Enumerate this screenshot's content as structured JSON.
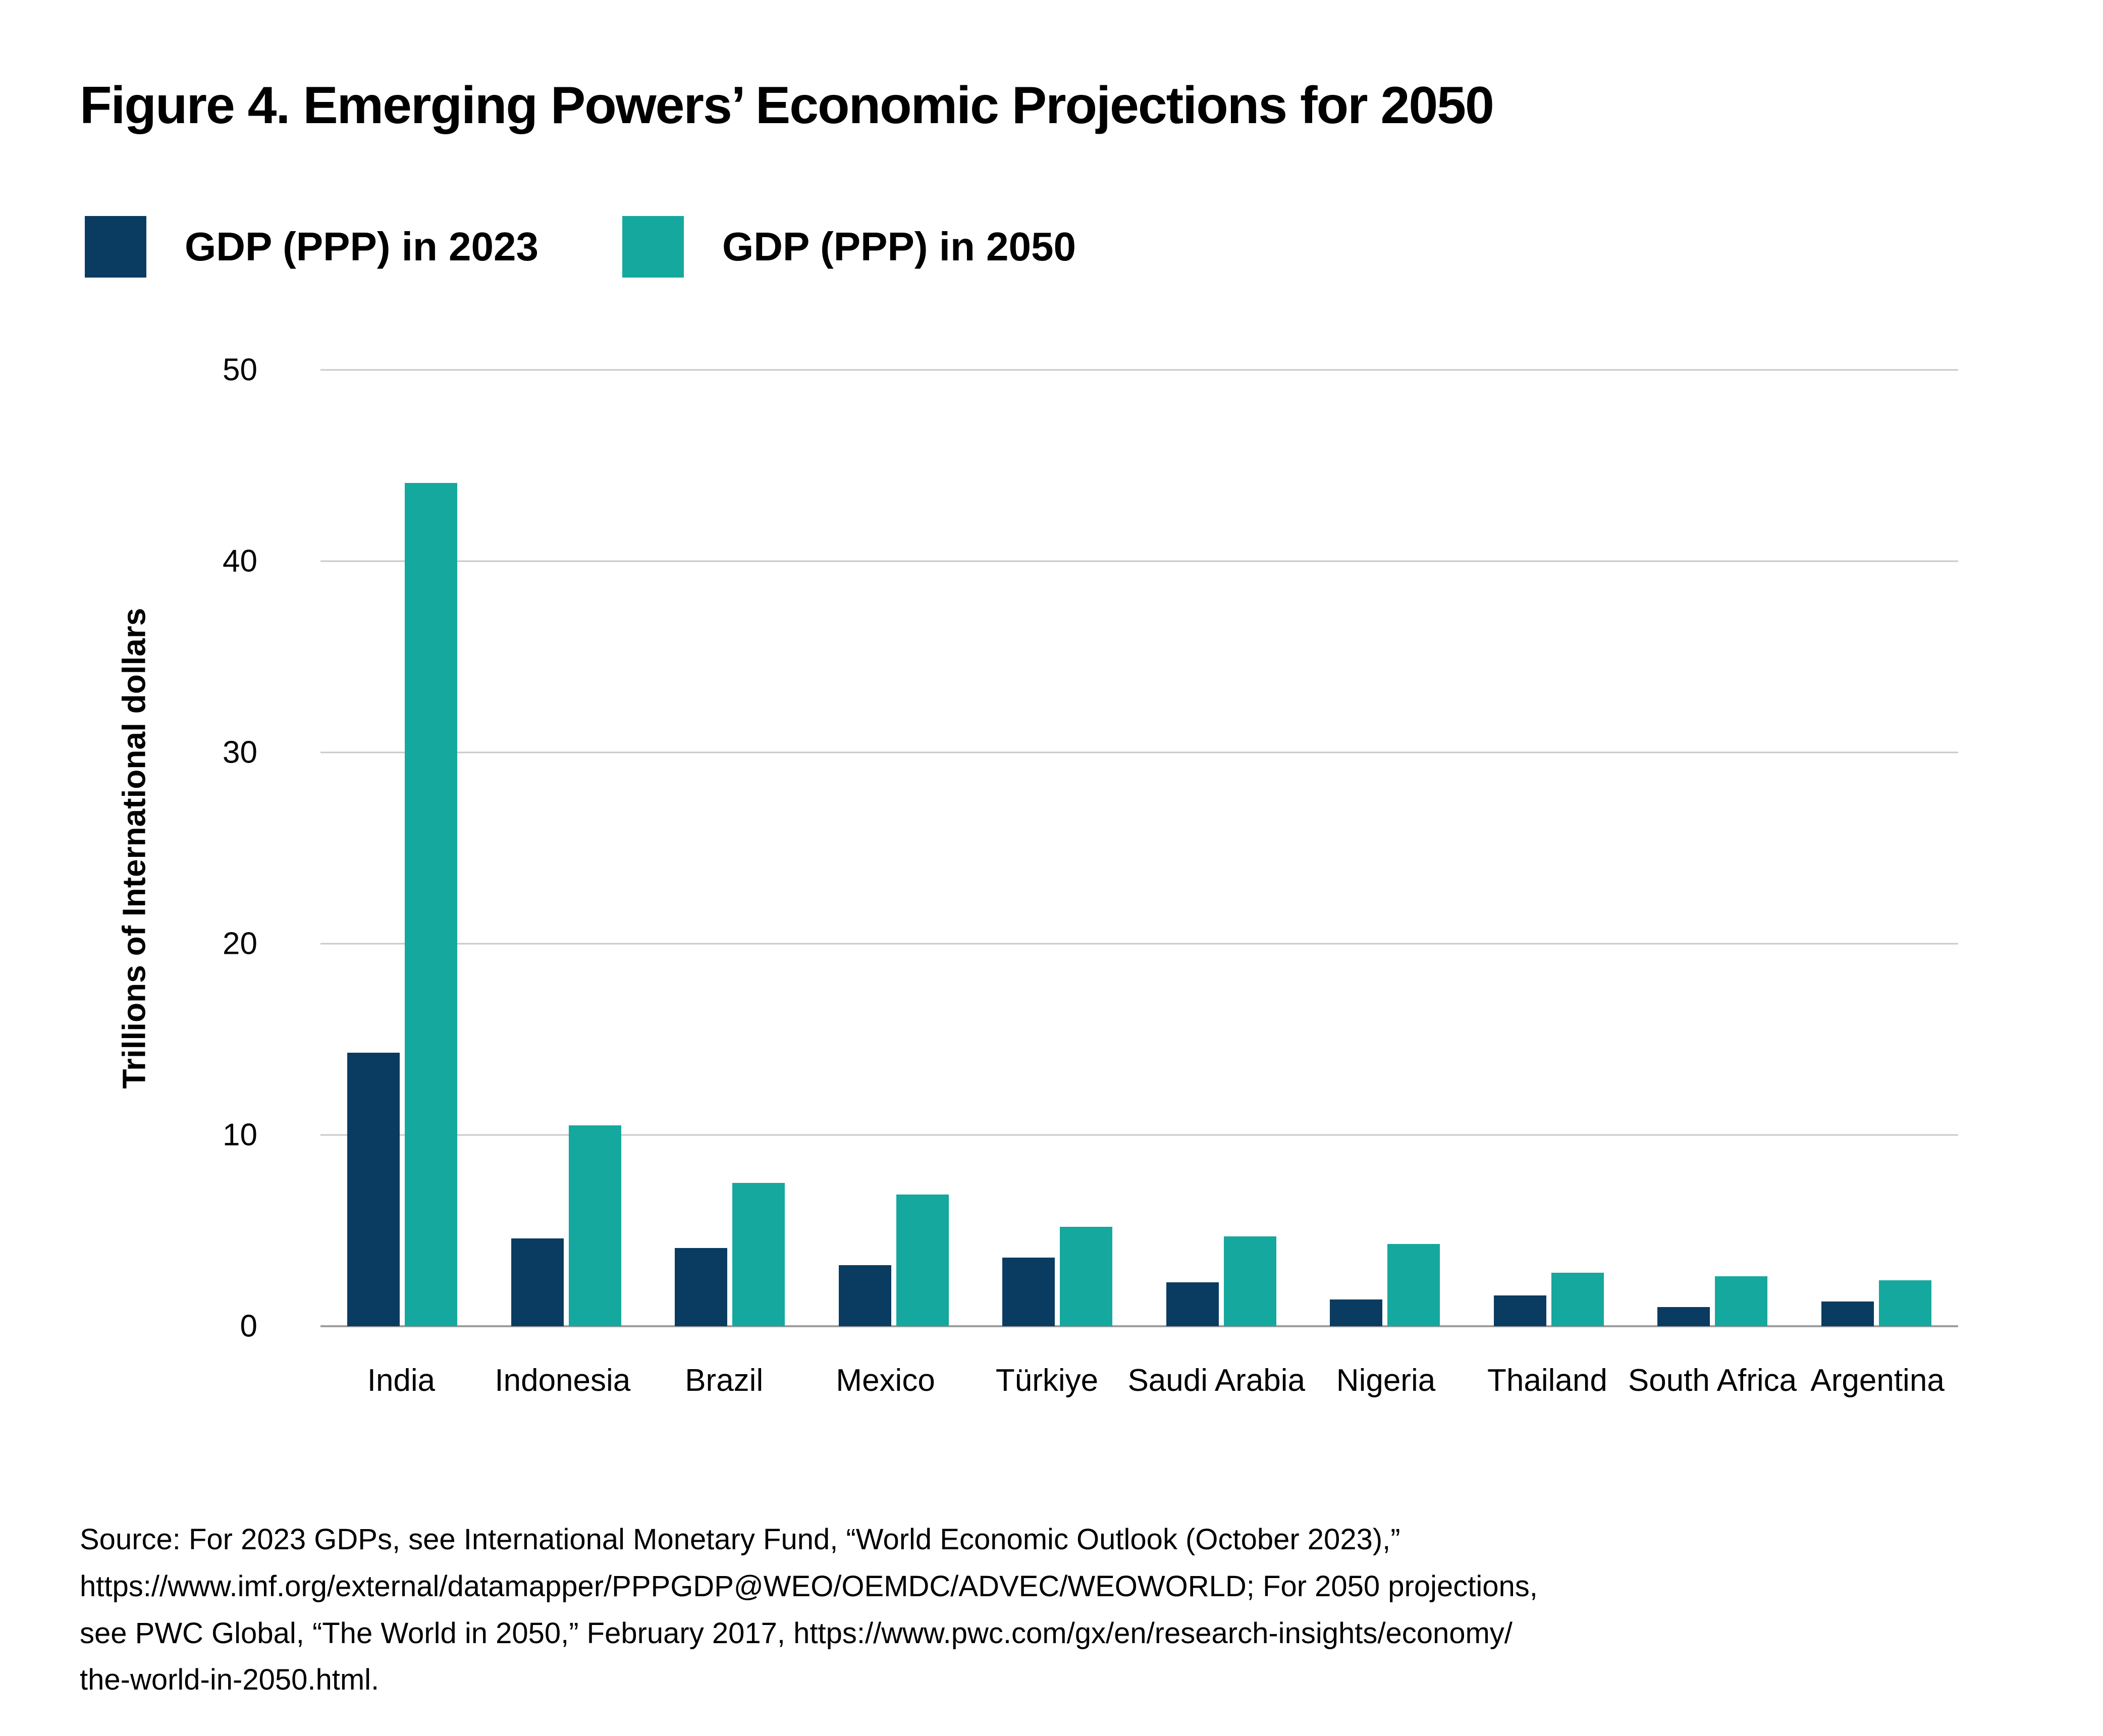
{
  "figure": {
    "title": "Figure 4. Emerging Powers’ Economic Projections for 2050",
    "source": "Source: For 2023 GDPs, see International Monetary Fund, “World Economic Outlook (October 2023),”\nhttps://www.imf.org/external/datamapper/PPPGDP@WEO/OEMDC/ADVEC/WEOWORLD; For 2050 projections,\nsee PWC Global, “The World in 2050,” February 2017, https://www.pwc.com/gx/en/research-insights/economy/\nthe-world-in-2050.html."
  },
  "colors": {
    "navy_2023": "#0a3c61",
    "teal_2050": "#14a89e",
    "gridline": "#c9c9c9",
    "baseline": "#9e9e9e",
    "text": "#000000"
  },
  "chart_data": {
    "type": "bar",
    "title": "Figure 4. Emerging Powers’ Economic Projections for 2050",
    "categories": [
      "India",
      "Indonesia",
      "Brazil",
      "Mexico",
      "Türkiye",
      "Saudi Arabia",
      "Nigeria",
      "Thailand",
      "South Africa",
      "Argentina"
    ],
    "series": [
      {
        "name": "GDP (PPP) in 2023",
        "color": "#0a3c61",
        "values": [
          14.3,
          4.6,
          4.1,
          3.2,
          3.6,
          2.3,
          1.4,
          1.6,
          1.0,
          1.3
        ]
      },
      {
        "name": "GDP (PPP) in 2050",
        "color": "#14a89e",
        "values": [
          44.1,
          10.5,
          7.5,
          6.9,
          5.2,
          4.7,
          4.3,
          2.8,
          2.6,
          2.4
        ]
      }
    ],
    "xlabel": "",
    "ylabel": "Trillions of International dollars",
    "yticks": [
      0,
      10,
      20,
      30,
      40,
      50
    ],
    "ylim": [
      0,
      50
    ],
    "grid": true,
    "legend_position": "top-left"
  }
}
